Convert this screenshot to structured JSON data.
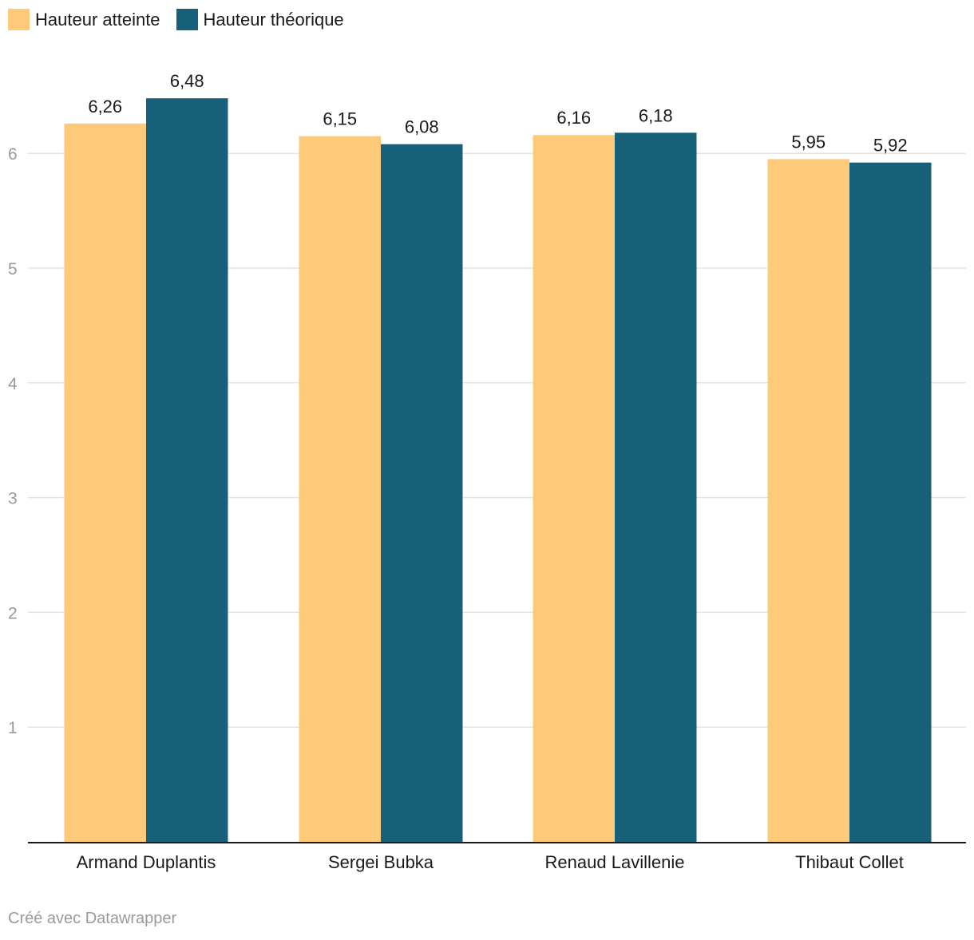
{
  "legend": {
    "items": [
      {
        "label": "Hauteur atteinte",
        "color": "#fec979"
      },
      {
        "label": "Hauteur théorique",
        "color": "#17607a"
      }
    ]
  },
  "chart_data": {
    "type": "bar",
    "categories": [
      "Armand Duplantis",
      "Sergei Bubka",
      "Renaud Lavillenie",
      "Thibaut Collet"
    ],
    "series": [
      {
        "name": "Hauteur atteinte",
        "values": [
          6.26,
          6.15,
          6.16,
          5.95
        ],
        "labels": [
          "6,26",
          "6,15",
          "6,16",
          "5,95"
        ],
        "color": "#fec979"
      },
      {
        "name": "Hauteur théorique",
        "values": [
          6.48,
          6.08,
          6.18,
          5.92
        ],
        "labels": [
          "6,48",
          "6,08",
          "6,18",
          "5,92"
        ],
        "color": "#17607a"
      }
    ],
    "y_ticks": [
      1,
      2,
      3,
      4,
      5,
      6
    ],
    "ylim": [
      0,
      6.5
    ],
    "grid": true,
    "legend_position": "top-left"
  },
  "footer": {
    "credit": "Créé avec Datawrapper"
  }
}
